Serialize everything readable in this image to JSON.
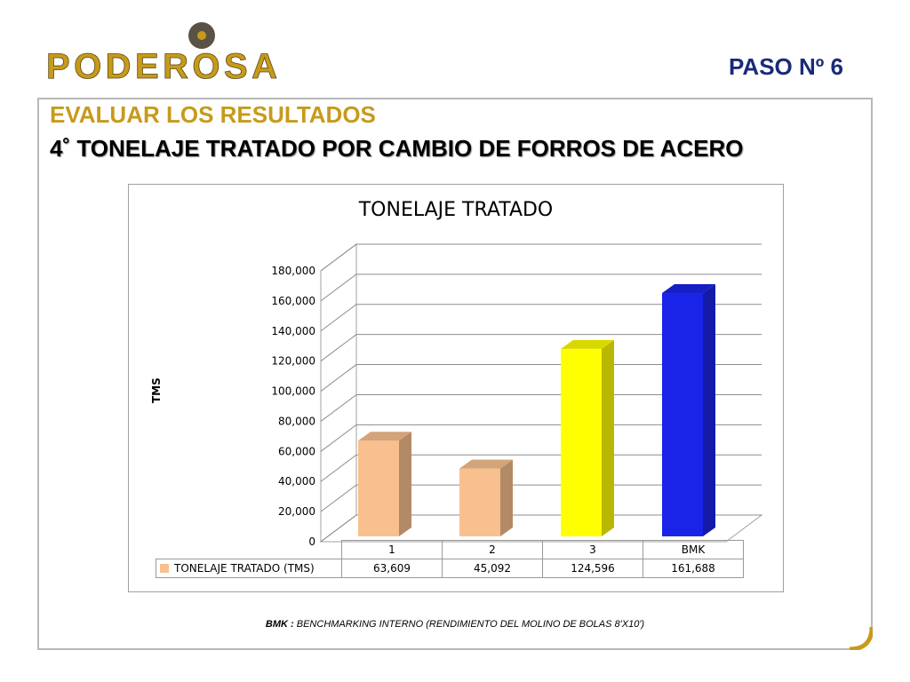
{
  "header": {
    "logo_text": "PODEROSA",
    "step": "PASO  Nº 6",
    "subtitle1": "EVALUAR LOS RESULTADOS",
    "subtitle2": "4˚  TONELAJE TRATADO POR CAMBIO DE FORROS DE ACERO"
  },
  "colors": {
    "brand_gold": "#c79a1a",
    "arrow_blue": "#1a24e8"
  },
  "icons": {
    "indicator": "up-arrow-icon"
  },
  "chart_data": {
    "type": "bar",
    "title": "TONELAJE TRATADO",
    "ylabel": "TMS",
    "xlabel": "",
    "categories": [
      "1",
      "2",
      "3",
      "BMK"
    ],
    "series": [
      {
        "name": "TONELAJE TRATADO (TMS)",
        "values": [
          63609,
          45092,
          124596,
          161688
        ]
      }
    ],
    "display_values": [
      "63,609",
      "45,092",
      "124,596",
      "161,688"
    ],
    "bar_colors": [
      "#f8c08e",
      "#f8c08e",
      "#ffff00",
      "#1a24e8"
    ],
    "ylim": [
      0,
      180000
    ],
    "yticks": [
      0,
      20000,
      40000,
      60000,
      80000,
      100000,
      120000,
      140000,
      160000,
      180000
    ],
    "ytick_labels": [
      "0",
      "20,000",
      "40,000",
      "60,000",
      "80,000",
      "100,000",
      "120,000",
      "140,000",
      "160,000",
      "180,000"
    ],
    "grid": true,
    "legend": "data-table-bottom"
  },
  "footnote": {
    "label": "BMK :",
    "text": " BENCHMARKING INTERNO (RENDIMIENTO DEL MOLINO DE BOLAS 8'X10')"
  }
}
